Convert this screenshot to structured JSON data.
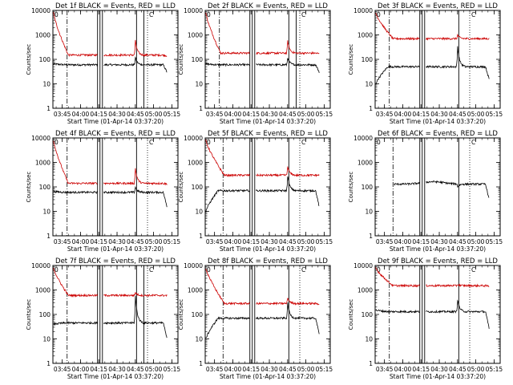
{
  "figure": {
    "background": "#ffffff",
    "colors": {
      "events": "#000000",
      "lld": "#cc0000",
      "axes": "#000000"
    }
  },
  "chart_data": [
    {
      "type": "line",
      "title": "Det 1f BLACK = Events, RED = LLD",
      "xlabel": "Start Time (01-Apr-14 03:37:20)",
      "ylabel": "Counts/sec",
      "xlim": [
        "03:37:20",
        "05:20:00"
      ],
      "ylim": [
        1,
        10000
      ],
      "yscale": "log",
      "x_ticks": [
        "03:45",
        "04:00",
        "04:15",
        "04:30",
        "04:45",
        "05:00",
        "05:15"
      ],
      "y_ticks": [
        "1",
        "10",
        "100",
        "1000",
        "10000"
      ],
      "legend_markers": [
        "0",
        "C"
      ],
      "marker_lines": {
        "dashdot": [
          "03:49"
        ],
        "solid": [
          "04:14",
          "04:16",
          "04:18",
          "04:46",
          "04:52"
        ],
        "dotted": [
          "04:55"
        ]
      },
      "series": [
        {
          "color": "#000000",
          "base": 60,
          "start": 65,
          "gap_start": "04:14",
          "gap_end": "04:19",
          "peak_time": "04:45",
          "peak": 120,
          "end": 30
        },
        {
          "color": "#cc0000",
          "base": 150,
          "start": 8000,
          "decay_end": "03:50",
          "gap_start": "04:14",
          "gap_end": "04:19",
          "peak_time": "04:45",
          "peak": 600,
          "end": 140
        }
      ]
    },
    {
      "type": "line",
      "title": "Det 2f BLACK = Events, RED = LLD",
      "xlabel": "Start Time (01-Apr-14 03:37:20)",
      "ylabel": "Counts/sec",
      "xlim": [
        "03:37:20",
        "05:20:00"
      ],
      "ylim": [
        1,
        10000
      ],
      "yscale": "log",
      "x_ticks": [
        "03:45",
        "04:00",
        "04:15",
        "04:30",
        "04:45",
        "05:00",
        "05:15"
      ],
      "y_ticks": [
        "1",
        "10",
        "100",
        "1000",
        "10000"
      ],
      "legend_markers": [
        "0",
        "C"
      ],
      "marker_lines": {
        "dashdot": [
          "03:49"
        ],
        "solid": [
          "04:14",
          "04:16",
          "04:18",
          "04:46",
          "04:52"
        ],
        "dotted": [
          "04:55"
        ]
      },
      "series": [
        {
          "color": "#000000",
          "base": 60,
          "start": 65,
          "gap_start": "04:14",
          "gap_end": "04:19",
          "peak_time": "04:45",
          "peak": 120,
          "end": 30
        },
        {
          "color": "#cc0000",
          "base": 180,
          "start": 8000,
          "decay_end": "03:50",
          "gap_start": "04:14",
          "gap_end": "04:19",
          "peak_time": "04:45",
          "peak": 600,
          "end": 170
        }
      ]
    },
    {
      "type": "line",
      "title": "Det 3f BLACK = Events, RED = LLD",
      "xlabel": "Start Time (01-Apr-14 03:37:20)",
      "ylabel": "Counts/sec",
      "xlim": [
        "03:37:20",
        "05:20:00"
      ],
      "ylim": [
        1,
        10000
      ],
      "yscale": "log",
      "x_ticks": [
        "03:45",
        "04:00",
        "04:15",
        "04:30",
        "04:45",
        "05:00",
        "05:15"
      ],
      "y_ticks": [
        "1",
        "10",
        "100",
        "1000",
        "10000"
      ],
      "legend_markers": [
        "0",
        "C"
      ],
      "marker_lines": {
        "dashdot": [
          "03:49"
        ],
        "solid": [
          "04:14",
          "04:16",
          "04:18",
          "04:46"
        ],
        "dotted": [
          "04:55"
        ]
      },
      "series": [
        {
          "color": "#000000",
          "base": 50,
          "start": 10,
          "gap_start": "04:14",
          "gap_end": "04:19",
          "peak_time": "04:45",
          "peak": 350,
          "end": 15
        },
        {
          "color": "#cc0000",
          "base": 700,
          "start": 8000,
          "decay_end": "03:52",
          "gap_start": "04:14",
          "gap_end": "04:19",
          "peak_time": "04:45",
          "peak": 1000,
          "end": 700
        }
      ]
    },
    {
      "type": "line",
      "title": "Det 4f BLACK = Events, RED = LLD",
      "xlabel": "Start Time (01-Apr-14 03:37:20)",
      "ylabel": "Counts/sec",
      "xlim": [
        "03:37:20",
        "05:20:00"
      ],
      "ylim": [
        1,
        10000
      ],
      "yscale": "log",
      "x_ticks": [
        "03:45",
        "04:00",
        "04:15",
        "04:30",
        "04:45",
        "05:00",
        "05:15"
      ],
      "y_ticks": [
        "1",
        "10",
        "100",
        "1000",
        "10000"
      ],
      "legend_markers": [
        "0",
        "C"
      ],
      "marker_lines": {
        "dashdot": [
          "03:49"
        ],
        "solid": [
          "04:14",
          "04:16",
          "04:18",
          "04:46"
        ],
        "dotted": [
          "04:55"
        ]
      },
      "series": [
        {
          "color": "#000000",
          "base": 60,
          "start": 65,
          "gap_start": "04:14",
          "gap_end": "04:19",
          "peak_time": "04:45",
          "peak": 100,
          "end": 15
        },
        {
          "color": "#cc0000",
          "base": 140,
          "start": 8000,
          "decay_end": "03:50",
          "gap_start": "04:14",
          "gap_end": "04:19",
          "peak_time": "04:45",
          "peak": 600,
          "end": 130
        }
      ]
    },
    {
      "type": "line",
      "title": "Det 5f BLACK = Events, RED = LLD",
      "xlabel": "Start Time (01-Apr-14 03:37:20)",
      "ylabel": "Counts/sec",
      "xlim": [
        "03:37:20",
        "05:20:00"
      ],
      "ylim": [
        1,
        10000
      ],
      "yscale": "log",
      "x_ticks": [
        "03:45",
        "04:00",
        "04:15",
        "04:30",
        "04:45",
        "05:00",
        "05:15"
      ],
      "y_ticks": [
        "1",
        "10",
        "100",
        "1000",
        "10000"
      ],
      "legend_markers": [
        "0",
        "C"
      ],
      "marker_lines": {
        "dashdot": [
          "03:52"
        ],
        "solid": [
          "04:14",
          "04:16",
          "04:18",
          "04:46"
        ],
        "dotted": [
          "04:55"
        ]
      },
      "series": [
        {
          "color": "#000000",
          "base": 70,
          "start": 10,
          "gap_start": "04:14",
          "gap_end": "04:19",
          "peak_time": "04:45",
          "peak": 300,
          "end": 15
        },
        {
          "color": "#cc0000",
          "base": 300,
          "start": 8000,
          "decay_end": "03:53",
          "gap_start": "04:14",
          "gap_end": "04:19",
          "peak_time": "04:45",
          "peak": 700,
          "end": 300
        }
      ]
    },
    {
      "type": "line",
      "title": "Det 6f BLACK = Events, RED = LLD",
      "xlabel": "Start Time (01-Apr-14 03:37:20)",
      "ylabel": "Counts/sec",
      "xlim": [
        "03:37:20",
        "05:20:00"
      ],
      "ylim": [
        1,
        10000
      ],
      "yscale": "log",
      "x_ticks": [
        "03:45",
        "04:00",
        "04:15",
        "04:30",
        "04:45",
        "05:00",
        "05:15"
      ],
      "y_ticks": [
        "1",
        "10",
        "100",
        "1000",
        "10000"
      ],
      "legend_markers": [
        "0",
        "C"
      ],
      "marker_lines": {
        "dashdot": [
          "03:52"
        ],
        "solid": [
          "04:14",
          "04:16",
          "04:18",
          "04:46"
        ],
        "dotted": [
          "04:55"
        ]
      },
      "series": [
        {
          "color": "#000000",
          "base": 130,
          "start": 150,
          "data_start": "03:53",
          "hump_time": "04:25",
          "hump": 160,
          "gap_start": "04:14",
          "gap_end": "04:19",
          "peak_time": "04:45",
          "peak": 100,
          "end": 30
        }
      ]
    },
    {
      "type": "line",
      "title": "Det 7f BLACK = Events, RED = LLD",
      "xlabel": "Start Time (01-Apr-14 03:37:20)",
      "ylabel": "Counts/sec",
      "xlim": [
        "03:37:20",
        "05:20:00"
      ],
      "ylim": [
        1,
        10000
      ],
      "yscale": "log",
      "x_ticks": [
        "03:45",
        "04:00",
        "04:15",
        "04:30",
        "04:45",
        "05:00",
        "05:15"
      ],
      "y_ticks": [
        "1",
        "10",
        "100",
        "1000",
        "10000"
      ],
      "legend_markers": [
        "0",
        "C"
      ],
      "marker_lines": {
        "dashdot": [
          "03:49"
        ],
        "solid": [
          "04:14",
          "04:16",
          "04:18",
          "04:46",
          "04:52"
        ],
        "dotted": [
          "04:55"
        ]
      },
      "series": [
        {
          "color": "#000000",
          "base": 45,
          "start": 40,
          "gap_start": "04:14",
          "gap_end": "04:19",
          "peak_time": "04:45",
          "peak": 600,
          "end": 10
        },
        {
          "color": "#cc0000",
          "base": 600,
          "start": 8000,
          "decay_end": "03:50",
          "gap_start": "04:14",
          "gap_end": "04:19",
          "peak_time": "04:45",
          "peak": 800,
          "end": 600
        }
      ]
    },
    {
      "type": "line",
      "title": "Det 8f BLACK = Events, RED = LLD",
      "xlabel": "Start Time (01-Apr-14 03:37:20)",
      "ylabel": "Counts/sec",
      "xlim": [
        "03:37:20",
        "05:20:00"
      ],
      "ylim": [
        1,
        10000
      ],
      "yscale": "log",
      "x_ticks": [
        "03:45",
        "04:00",
        "04:15",
        "04:30",
        "04:45",
        "05:00",
        "05:15"
      ],
      "y_ticks": [
        "1",
        "10",
        "100",
        "1000",
        "10000"
      ],
      "legend_markers": [
        "0",
        "C"
      ],
      "marker_lines": {
        "dashdot": [
          "03:52"
        ],
        "solid": [
          "04:14",
          "04:16",
          "04:18",
          "04:46"
        ],
        "dotted": [
          "04:55"
        ]
      },
      "series": [
        {
          "color": "#000000",
          "base": 70,
          "start": 10,
          "gap_start": "04:14",
          "gap_end": "04:19",
          "peak_time": "04:45",
          "peak": 300,
          "end": 15
        },
        {
          "color": "#cc0000",
          "base": 280,
          "start": 8000,
          "decay_end": "03:53",
          "gap_start": "04:14",
          "gap_end": "04:19",
          "peak_time": "04:45",
          "peak": 500,
          "end": 270
        }
      ]
    },
    {
      "type": "line",
      "title": "Det 9f BLACK = Events, RED = LLD",
      "xlabel": "Start Time (01-Apr-14 03:37:20)",
      "ylabel": "Counts/sec",
      "xlim": [
        "03:37:20",
        "05:20:00"
      ],
      "ylim": [
        1,
        10000
      ],
      "yscale": "log",
      "x_ticks": [
        "03:45",
        "04:00",
        "04:15",
        "04:30",
        "04:45",
        "05:00",
        "05:15"
      ],
      "y_ticks": [
        "1",
        "10",
        "100",
        "1000",
        "10000"
      ],
      "legend_markers": [
        "0",
        "C"
      ],
      "marker_lines": {
        "dashdot": [
          "03:49"
        ],
        "solid": [
          "04:14",
          "04:16",
          "04:18",
          "04:46"
        ],
        "dotted": [
          "04:55"
        ]
      },
      "series": [
        {
          "color": "#000000",
          "base": 130,
          "start": 150,
          "gap_start": "04:14",
          "gap_end": "04:19",
          "peak_time": "04:45",
          "peak": 400,
          "end": 25
        },
        {
          "color": "#cc0000",
          "base": 1500,
          "start": 8000,
          "decay_end": "03:52",
          "gap_start": "04:14",
          "gap_end": "04:19",
          "peak_time": "04:45",
          "peak": 1700,
          "end": 1400
        }
      ]
    }
  ]
}
